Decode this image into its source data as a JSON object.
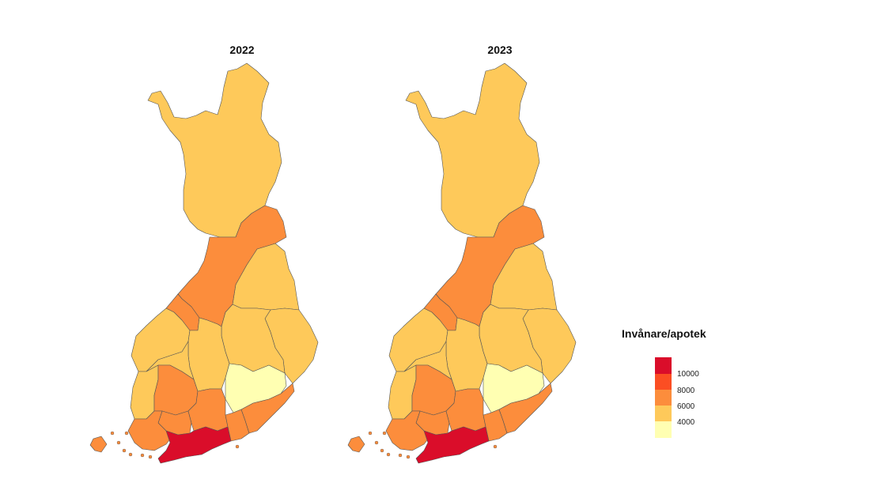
{
  "maps": [
    {
      "title": "2022",
      "regions": [
        {
          "name": "lapland",
          "category": "6000"
        },
        {
          "name": "kainuu",
          "category": "6000"
        },
        {
          "name": "north-ostrobothnia",
          "category": "8000"
        },
        {
          "name": "north-karelia",
          "category": "6000"
        },
        {
          "name": "north-savo",
          "category": "6000"
        },
        {
          "name": "central-ostrobothnia",
          "category": "8000"
        },
        {
          "name": "ostrobothnia",
          "category": "6000"
        },
        {
          "name": "central-finland",
          "category": "6000"
        },
        {
          "name": "south-ostrobothnia",
          "category": "6000"
        },
        {
          "name": "south-savo",
          "category": "4000"
        },
        {
          "name": "satakunta",
          "category": "6000"
        },
        {
          "name": "pirkanmaa",
          "category": "8000"
        },
        {
          "name": "kanta-hame",
          "category": "8000"
        },
        {
          "name": "paijat-hame",
          "category": "8000"
        },
        {
          "name": "kymenlaakso",
          "category": "8000"
        },
        {
          "name": "south-karelia",
          "category": "8000"
        },
        {
          "name": "southwest-finland",
          "category": "8000"
        },
        {
          "name": "uusimaa",
          "category": "10000"
        },
        {
          "name": "aland",
          "category": "8000"
        }
      ]
    },
    {
      "title": "2023",
      "regions": [
        {
          "name": "lapland",
          "category": "6000"
        },
        {
          "name": "kainuu",
          "category": "6000"
        },
        {
          "name": "north-ostrobothnia",
          "category": "8000"
        },
        {
          "name": "north-karelia",
          "category": "6000"
        },
        {
          "name": "north-savo",
          "category": "6000"
        },
        {
          "name": "central-ostrobothnia",
          "category": "8000"
        },
        {
          "name": "ostrobothnia",
          "category": "6000"
        },
        {
          "name": "central-finland",
          "category": "6000"
        },
        {
          "name": "south-ostrobothnia",
          "category": "6000"
        },
        {
          "name": "south-savo",
          "category": "4000"
        },
        {
          "name": "satakunta",
          "category": "6000"
        },
        {
          "name": "pirkanmaa",
          "category": "8000"
        },
        {
          "name": "kanta-hame",
          "category": "8000"
        },
        {
          "name": "paijat-hame",
          "category": "8000"
        },
        {
          "name": "kymenlaakso",
          "category": "8000"
        },
        {
          "name": "south-karelia",
          "category": "8000"
        },
        {
          "name": "southwest-finland",
          "category": "8000"
        },
        {
          "name": "uusimaa",
          "category": "10000"
        },
        {
          "name": "aland",
          "category": "8000"
        }
      ]
    }
  ],
  "legend": {
    "title": "Invånare/apotek",
    "labels": [
      "10000",
      "8000",
      "6000",
      "4000"
    ],
    "swatches": [
      "#da0d2a",
      "#fb4e23",
      "#fc8d3c",
      "#fec95a",
      "#ffffb2"
    ]
  },
  "category_colors": {
    "4000": "#ffffb2",
    "6000": "#fec95a",
    "8000": "#fc8d3c",
    "10000": "#da0d2a"
  },
  "border_color": "#555555"
}
